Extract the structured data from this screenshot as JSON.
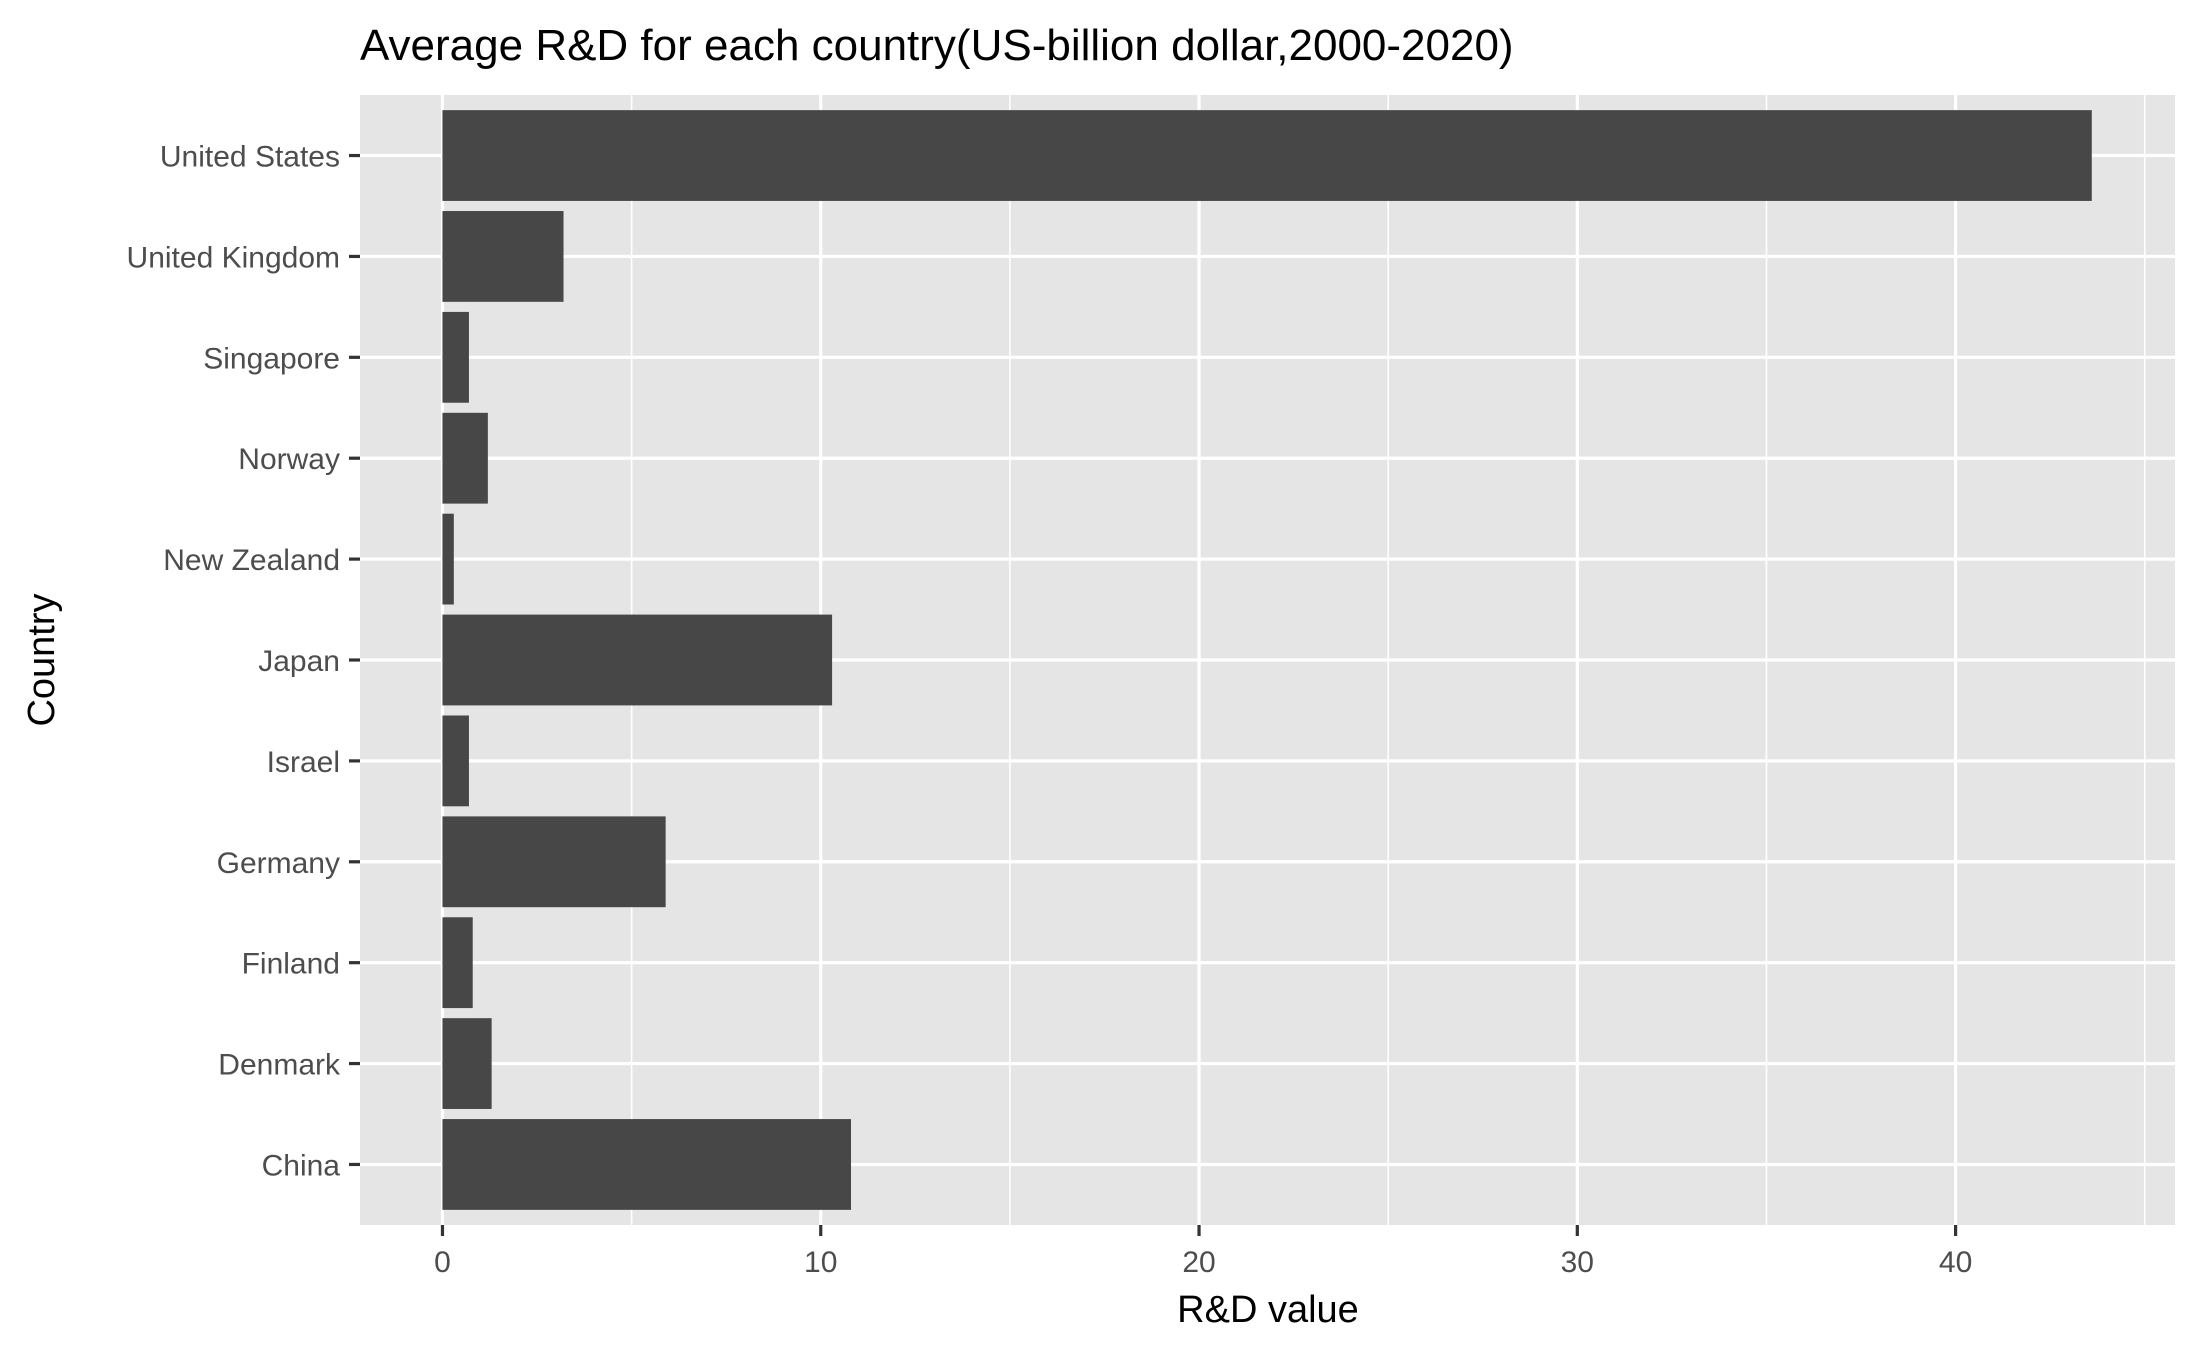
{
  "chart_data": {
    "type": "bar",
    "orientation": "horizontal",
    "title": "Average R&D for each country(US-billion dollar,2000-2020)",
    "xlabel": "R&D value",
    "ylabel": "Country",
    "categories": [
      "United States",
      "United Kingdom",
      "Singapore",
      "Norway",
      "New Zealand",
      "Japan",
      "Israel",
      "Germany",
      "Finland",
      "Denmark",
      "China"
    ],
    "values": [
      43.6,
      3.2,
      0.7,
      1.2,
      0.3,
      10.3,
      0.7,
      5.9,
      0.8,
      1.3,
      10.8
    ],
    "xlim": [
      -2.18,
      45.8
    ],
    "xticks": [
      0,
      10,
      20,
      30,
      40
    ],
    "xtick_labels": [
      "0",
      "10",
      "20",
      "30",
      "40"
    ],
    "grid": true,
    "legend": "none",
    "colors": {
      "bar": "#474747",
      "panel": "#e5e5e5",
      "grid": "#ffffff",
      "tick_text": "#4d4d4d",
      "tick_mark": "#333333"
    }
  }
}
